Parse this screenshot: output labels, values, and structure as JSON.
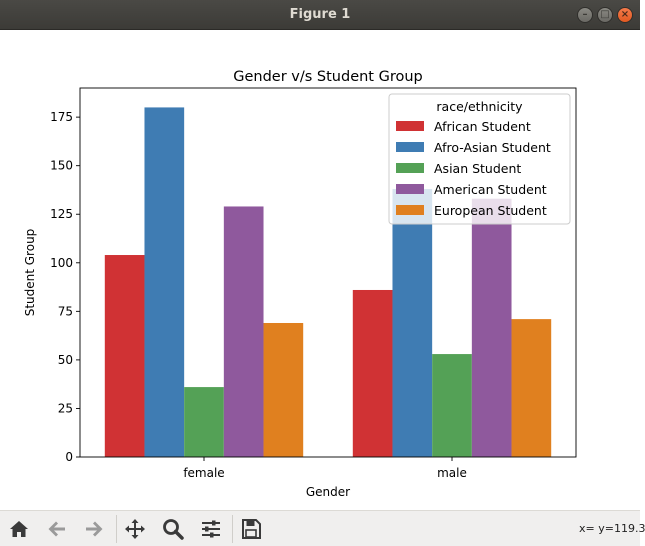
{
  "window": {
    "title": "Figure 1"
  },
  "toolbar": {
    "tools": [
      "home-icon",
      "back-arrow-icon",
      "forward-arrow-icon",
      "pan-icon",
      "zoom-icon",
      "configure-subplots-icon",
      "save-icon"
    ],
    "coords_text": "x= y=119.3"
  },
  "chart_data": {
    "type": "bar",
    "title": "Gender v/s Student Group",
    "xlabel": "Gender",
    "ylabel": "Student Group",
    "categories": [
      "female",
      "male"
    ],
    "ylim": [
      0,
      190
    ],
    "yticks": [
      0,
      25,
      50,
      75,
      100,
      125,
      150,
      175
    ],
    "grid": false,
    "legend": {
      "title": "race/ethnicity",
      "placement": "upper right"
    },
    "series": [
      {
        "name": "African Student",
        "color": "#d03234",
        "values": [
          104,
          86
        ]
      },
      {
        "name": "Afro-Asian Student",
        "color": "#3f7cb3",
        "values": [
          180,
          138
        ]
      },
      {
        "name": "Asian Student",
        "color": "#54a156",
        "values": [
          36,
          53
        ]
      },
      {
        "name": "American Student",
        "color": "#8f599d",
        "values": [
          129,
          133
        ]
      },
      {
        "name": "European Student",
        "color": "#e0801f",
        "values": [
          69,
          71
        ]
      }
    ]
  }
}
